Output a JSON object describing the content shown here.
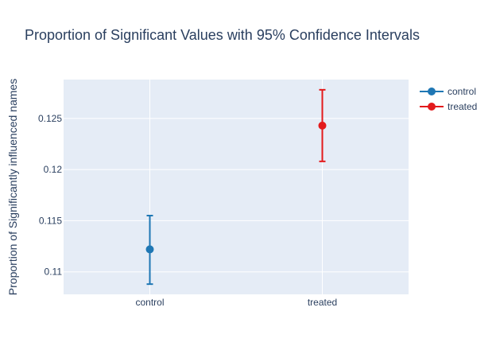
{
  "chart_data": {
    "type": "scatter",
    "title": "Proportion of Significant Values with 95% Confidence Intervals",
    "xlabel": "",
    "ylabel": "Proportion of Significantly influenced names",
    "categories": [
      "control",
      "treated"
    ],
    "ylim": [
      0.1078,
      0.1288
    ],
    "yticks": [
      "0.11",
      "0.115",
      "0.12",
      "0.125"
    ],
    "grid": true,
    "legend_position": "top-right",
    "series": [
      {
        "name": "control",
        "x": "control",
        "value": 0.1122,
        "ci_low": 0.1088,
        "ci_high": 0.1155,
        "color": "#1f77b4"
      },
      {
        "name": "treated",
        "x": "treated",
        "value": 0.1243,
        "ci_low": 0.1208,
        "ci_high": 0.1278,
        "color": "#e31a1c"
      }
    ]
  },
  "colors": {
    "plot_bg": "#e5ecf6",
    "grid": "#ffffff",
    "text": "#2a3f5f"
  }
}
